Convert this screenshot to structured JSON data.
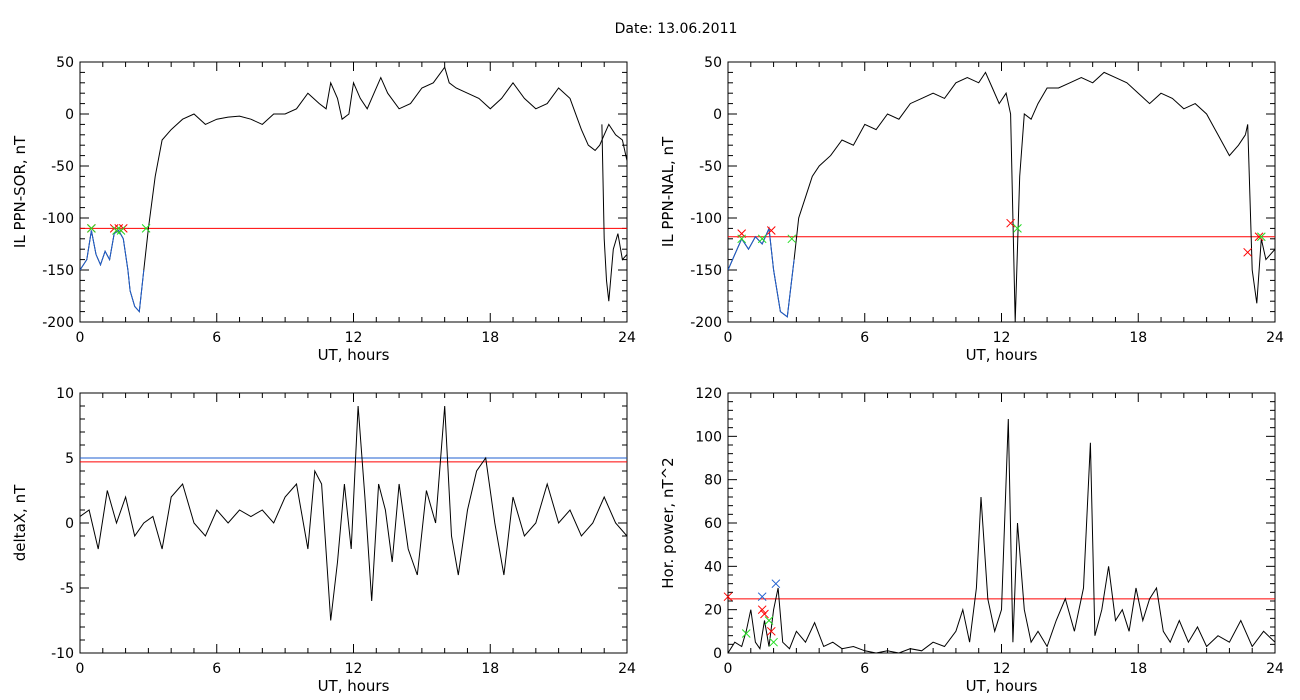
{
  "figure": {
    "title": "Date:  13.06.2011"
  },
  "chart_data": [
    {
      "id": "p1",
      "type": "line",
      "xlabel": "UT, hours",
      "ylabel": "IL PPN-SOR, nT",
      "xlim": [
        0,
        24
      ],
      "ylim": [
        -200,
        50
      ],
      "xticks": [
        0,
        6,
        12,
        18,
        24
      ],
      "yticks": [
        -200,
        -150,
        -100,
        -50,
        0,
        50
      ],
      "threshold": {
        "value": -110,
        "color": "#ff0000"
      },
      "series": [
        {
          "color": "#000000",
          "x": [
            0,
            0.3,
            0.5,
            0.7,
            0.9,
            1.1,
            1.3,
            1.5,
            1.7,
            1.9,
            2.1,
            2.2,
            2.4,
            2.6,
            2.8,
            3.0,
            3.3,
            3.6,
            4.0,
            4.5,
            5.0,
            5.5,
            6.0,
            6.5,
            7.0,
            7.5,
            8.0,
            8.5,
            9.0,
            9.5,
            10.0,
            10.5,
            10.8,
            11.0,
            11.3,
            11.5,
            11.8,
            12.0,
            12.3,
            12.6,
            12.9,
            13.2,
            13.5,
            14.0,
            14.5,
            15.0,
            15.5,
            16.0,
            16.2,
            16.5,
            17.0,
            17.5,
            18.0,
            18.5,
            19.0,
            19.5,
            20.0,
            20.5,
            21.0,
            21.5,
            22.0,
            22.3,
            22.6,
            22.8,
            23.0,
            23.2,
            23.5,
            23.8,
            24.0
          ],
          "y": [
            -150,
            -140,
            -112,
            -135,
            -145,
            -132,
            -140,
            -115,
            -112,
            -120,
            -150,
            -170,
            -185,
            -190,
            -150,
            -110,
            -60,
            -25,
            -15,
            -5,
            0,
            -10,
            -5,
            -3,
            -2,
            -5,
            -10,
            0,
            0,
            5,
            20,
            10,
            5,
            30,
            15,
            -5,
            0,
            30,
            15,
            5,
            20,
            35,
            20,
            5,
            10,
            25,
            30,
            45,
            30,
            25,
            20,
            15,
            5,
            15,
            30,
            15,
            5,
            10,
            25,
            15,
            -15,
            -30,
            -35,
            -30,
            -20,
            -10,
            -20,
            -25,
            -45
          ],
          "x2": [
            22.9,
            23.0,
            23.1,
            23.2,
            23.4,
            23.6,
            23.8,
            24.0
          ],
          "y2": [
            -10,
            -120,
            -160,
            -180,
            -130,
            -115,
            -140,
            -135
          ]
        },
        {
          "color": "#1f5fd0",
          "x": [
            0,
            0.3,
            0.5,
            0.7,
            0.9,
            1.1,
            1.3,
            1.5,
            1.7,
            1.9,
            2.1,
            2.2,
            2.4,
            2.6,
            2.8
          ],
          "y": [
            -150,
            -140,
            -112,
            -135,
            -145,
            -132,
            -140,
            -115,
            -112,
            -120,
            -150,
            -170,
            -185,
            -190,
            -150
          ]
        }
      ],
      "markers": [
        {
          "x": 0.5,
          "y": -110,
          "color": "#ff0000"
        },
        {
          "x": 1.5,
          "y": -110,
          "color": "#ff0000"
        },
        {
          "x": 1.7,
          "y": -110,
          "color": "#ff0000"
        },
        {
          "x": 1.9,
          "y": -110,
          "color": "#ff0000"
        },
        {
          "x": 0.5,
          "y": -110,
          "color": "#22dd22"
        },
        {
          "x": 1.6,
          "y": -112,
          "color": "#22dd22"
        },
        {
          "x": 1.8,
          "y": -112,
          "color": "#22dd22"
        },
        {
          "x": 2.9,
          "y": -110,
          "color": "#22dd22"
        }
      ]
    },
    {
      "id": "p2",
      "type": "line",
      "xlabel": "UT, hours",
      "ylabel": "IL PPN-NAL, nT",
      "xlim": [
        0,
        24
      ],
      "ylim": [
        -200,
        50
      ],
      "xticks": [
        0,
        6,
        12,
        18,
        24
      ],
      "yticks": [
        -200,
        -150,
        -100,
        -50,
        0,
        50
      ],
      "threshold": {
        "value": -118,
        "color": "#ff0000"
      },
      "series": [
        {
          "color": "#000000",
          "x": [
            0,
            0.3,
            0.6,
            0.9,
            1.2,
            1.5,
            1.8,
            2.0,
            2.3,
            2.6,
            2.9,
            3.1,
            3.4,
            3.7,
            4.0,
            4.5,
            5.0,
            5.5,
            6.0,
            6.5,
            7.0,
            7.5,
            8.0,
            8.5,
            9.0,
            9.5,
            10.0,
            10.5,
            11.0,
            11.3,
            11.6,
            11.9,
            12.2,
            12.4,
            12.6,
            12.8,
            13.0,
            13.3,
            13.6,
            14.0,
            14.5,
            15.0,
            15.5,
            16.0,
            16.5,
            17.0,
            17.5,
            18.0,
            18.5,
            19.0,
            19.5,
            20.0,
            20.5,
            21.0,
            21.5,
            22.0,
            22.4,
            22.7
          ],
          "y": [
            -150,
            -135,
            -120,
            -130,
            -118,
            -125,
            -110,
            -150,
            -190,
            -195,
            -140,
            -100,
            -80,
            -60,
            -50,
            -40,
            -25,
            -30,
            -10,
            -15,
            0,
            -5,
            10,
            15,
            20,
            15,
            30,
            35,
            30,
            40,
            25,
            10,
            20,
            0,
            -200,
            -60,
            0,
            -5,
            10,
            25,
            25,
            30,
            35,
            30,
            40,
            35,
            30,
            20,
            10,
            20,
            15,
            5,
            10,
            0,
            -20,
            -40,
            -30,
            -20
          ],
          "x2": [
            22.7,
            22.8,
            23.0,
            23.2,
            23.4,
            23.6,
            23.8,
            24.0
          ],
          "y2": [
            -20,
            -10,
            -150,
            -182,
            -120,
            -140,
            -135,
            -130
          ]
        },
        {
          "color": "#1f5fd0",
          "x": [
            0,
            0.3,
            0.6,
            0.9,
            1.2,
            1.5,
            1.8,
            2.0,
            2.3,
            2.6,
            2.9
          ],
          "y": [
            -150,
            -135,
            -120,
            -130,
            -118,
            -125,
            -110,
            -150,
            -190,
            -195,
            -140
          ]
        }
      ],
      "markers": [
        {
          "x": 0.6,
          "y": -115,
          "color": "#ff0000"
        },
        {
          "x": 1.9,
          "y": -112,
          "color": "#ff0000"
        },
        {
          "x": 12.4,
          "y": -105,
          "color": "#ff0000"
        },
        {
          "x": 22.8,
          "y": -133,
          "color": "#ff0000"
        },
        {
          "x": 23.3,
          "y": -118,
          "color": "#ff0000"
        },
        {
          "x": 0.6,
          "y": -120,
          "color": "#22dd22"
        },
        {
          "x": 1.5,
          "y": -120,
          "color": "#22dd22"
        },
        {
          "x": 2.8,
          "y": -120,
          "color": "#22dd22"
        },
        {
          "x": 12.7,
          "y": -110,
          "color": "#22dd22"
        },
        {
          "x": 23.4,
          "y": -118,
          "color": "#22dd22"
        }
      ]
    },
    {
      "id": "p3",
      "type": "line",
      "xlabel": "UT, hours",
      "ylabel": "deltaX, nT",
      "xlim": [
        0,
        24
      ],
      "ylim": [
        -10,
        10
      ],
      "xticks": [
        0,
        6,
        12,
        18,
        24
      ],
      "yticks": [
        -10,
        -5,
        0,
        5,
        10
      ],
      "threshold": {
        "value": 4.7,
        "color": "#ff0000"
      },
      "threshold2": {
        "value": 5.0,
        "color": "#1f5fd0"
      },
      "series": [
        {
          "color": "#000000",
          "x": [
            0,
            0.4,
            0.8,
            1.2,
            1.6,
            2.0,
            2.4,
            2.8,
            3.2,
            3.6,
            4.0,
            4.5,
            5.0,
            5.5,
            6.0,
            6.5,
            7.0,
            7.5,
            8.0,
            8.5,
            9.0,
            9.5,
            10.0,
            10.3,
            10.6,
            11.0,
            11.3,
            11.6,
            11.9,
            12.2,
            12.5,
            12.8,
            13.1,
            13.4,
            13.7,
            14.0,
            14.4,
            14.8,
            15.2,
            15.6,
            16.0,
            16.3,
            16.6,
            17.0,
            17.4,
            17.8,
            18.2,
            18.6,
            19.0,
            19.5,
            20.0,
            20.5,
            21.0,
            21.5,
            22.0,
            22.5,
            23.0,
            23.5,
            24.0
          ],
          "y": [
            0.5,
            1,
            -2,
            2.5,
            0,
            2,
            -1,
            0,
            0.5,
            -2,
            2,
            3,
            0,
            -1,
            1,
            0,
            1,
            0.5,
            1,
            0,
            2,
            3,
            -2,
            4,
            3,
            -7.5,
            -3,
            3,
            -2,
            9,
            2,
            -6,
            3,
            1,
            -3,
            3,
            -2,
            -4,
            2.5,
            0,
            9,
            -1,
            -4,
            1,
            4,
            5,
            0,
            -4,
            2,
            -1,
            0,
            3,
            0,
            1,
            -1,
            0,
            2,
            0,
            -1
          ]
        }
      ],
      "markers": []
    },
    {
      "id": "p4",
      "type": "line",
      "xlabel": "UT, hours",
      "ylabel": "Hor. power, nT^2",
      "xlim": [
        0,
        24
      ],
      "ylim": [
        0,
        120
      ],
      "xticks": [
        0,
        6,
        12,
        18,
        24
      ],
      "yticks": [
        0,
        20,
        40,
        60,
        80,
        100,
        120
      ],
      "threshold": {
        "value": 25,
        "color": "#ff0000"
      },
      "series": [
        {
          "color": "#000000",
          "x": [
            0,
            0.3,
            0.6,
            0.8,
            1.0,
            1.2,
            1.4,
            1.6,
            1.8,
            2.0,
            2.2,
            2.4,
            2.7,
            3.0,
            3.4,
            3.8,
            4.2,
            4.6,
            5.0,
            5.5,
            6.0,
            6.5,
            7.0,
            7.5,
            8.0,
            8.5,
            9.0,
            9.5,
            10.0,
            10.3,
            10.6,
            10.9,
            11.1,
            11.4,
            11.7,
            12.0,
            12.3,
            12.5,
            12.7,
            13.0,
            13.3,
            13.6,
            14.0,
            14.4,
            14.8,
            15.2,
            15.6,
            15.9,
            16.1,
            16.4,
            16.7,
            17.0,
            17.3,
            17.6,
            17.9,
            18.2,
            18.5,
            18.8,
            19.1,
            19.4,
            19.8,
            20.2,
            20.6,
            21.0,
            21.5,
            22.0,
            22.5,
            23.0,
            23.5,
            24.0
          ],
          "y": [
            0,
            5,
            3,
            10,
            20,
            5,
            2,
            15,
            3,
            20,
            30,
            5,
            2,
            10,
            5,
            14,
            3,
            5,
            2,
            3,
            1,
            0,
            1,
            0,
            2,
            1,
            5,
            3,
            10,
            20,
            5,
            30,
            72,
            25,
            10,
            20,
            108,
            5,
            60,
            20,
            5,
            10,
            3,
            15,
            25,
            10,
            30,
            97,
            8,
            20,
            40,
            15,
            20,
            10,
            30,
            15,
            25,
            30,
            10,
            5,
            15,
            5,
            12,
            3,
            8,
            5,
            15,
            3,
            10,
            5
          ]
        }
      ],
      "markers": [
        {
          "x": 0.0,
          "y": 26,
          "color": "#ff0000"
        },
        {
          "x": 1.5,
          "y": 20,
          "color": "#ff0000"
        },
        {
          "x": 1.6,
          "y": 18,
          "color": "#ff0000"
        },
        {
          "x": 1.9,
          "y": 10,
          "color": "#ff0000"
        },
        {
          "x": 0.8,
          "y": 9,
          "color": "#22dd22"
        },
        {
          "x": 1.8,
          "y": 15,
          "color": "#22dd22"
        },
        {
          "x": 2.0,
          "y": 5,
          "color": "#22dd22"
        },
        {
          "x": 1.5,
          "y": 26,
          "color": "#1f5fd0"
        },
        {
          "x": 2.1,
          "y": 32,
          "color": "#1f5fd0"
        }
      ]
    }
  ]
}
